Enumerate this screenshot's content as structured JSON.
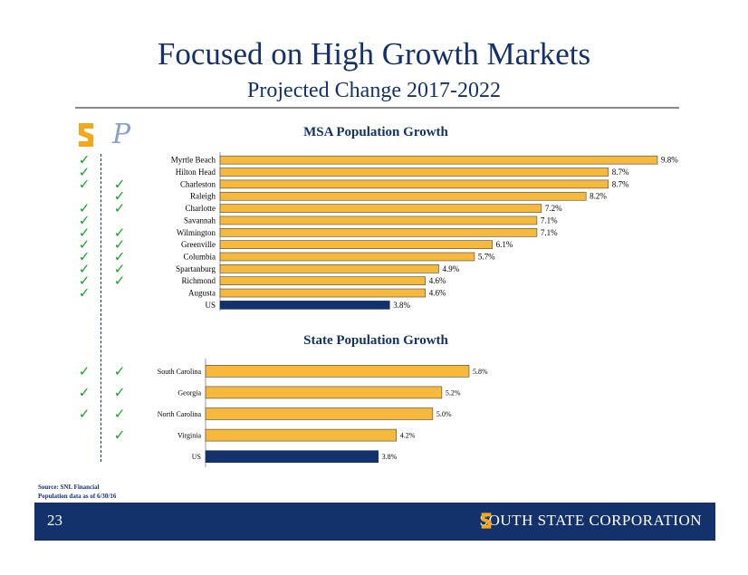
{
  "header": {
    "title": "Focused on High Growth Markets",
    "subtitle": "Projected Change 2017-2022"
  },
  "logos": {
    "left": "south-state-s-logo",
    "right_letter": "P"
  },
  "colors": {
    "primary": "#13316b",
    "bar": "#f6b93b",
    "us_bar": "#13316b",
    "check": "#17a32a"
  },
  "footer": {
    "page": "23",
    "brand_s": "S",
    "brand_text": "SOUTH STATE CORPORATION",
    "source_line1": "Source: SNL Financial",
    "source_line2": "Population data as of 6/30/16"
  },
  "chart_data": [
    {
      "type": "bar",
      "orientation": "horizontal",
      "title": "MSA Population Growth",
      "categories": [
        "Myrtle Beach",
        "Hilton Head",
        "Charleston",
        "Raleigh",
        "Charlotte",
        "Savannah",
        "Wilmington",
        "Greenville",
        "Columbia",
        "Spartanburg",
        "Richmond",
        "Augusta",
        "US"
      ],
      "values": [
        9.8,
        8.7,
        8.7,
        8.2,
        7.2,
        7.1,
        7.1,
        6.1,
        5.7,
        4.9,
        4.6,
        4.6,
        3.8
      ],
      "labels": [
        "9.8%",
        "8.7%",
        "8.7%",
        "8.2%",
        "7.2%",
        "7.1%",
        "7.1%",
        "6.1%",
        "5.7%",
        "4.9%",
        "4.6%",
        "4.6%",
        "3.8%"
      ],
      "highlight": "US",
      "check_left": [
        true,
        true,
        true,
        false,
        true,
        true,
        true,
        true,
        true,
        true,
        true,
        true,
        false
      ],
      "check_right": [
        false,
        false,
        true,
        true,
        true,
        false,
        true,
        true,
        true,
        true,
        true,
        false,
        false
      ]
    },
    {
      "type": "bar",
      "orientation": "horizontal",
      "title": "State Population Growth",
      "categories": [
        "South Carolina",
        "Georgia",
        "North Carolina",
        "Virginia",
        "US"
      ],
      "values": [
        5.8,
        5.2,
        5.0,
        4.2,
        3.8
      ],
      "labels": [
        "5.8%",
        "5.2%",
        "5.0%",
        "4.2%",
        "3.8%"
      ],
      "highlight": "US",
      "check_left": [
        true,
        true,
        true,
        false,
        false
      ],
      "check_right": [
        true,
        true,
        true,
        true,
        false
      ]
    }
  ]
}
